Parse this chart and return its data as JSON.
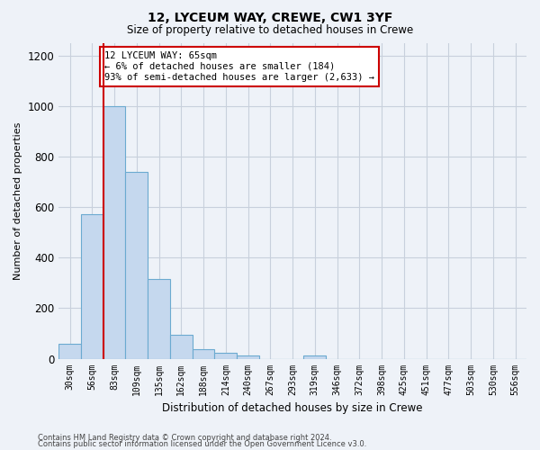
{
  "title": "12, LYCEUM WAY, CREWE, CW1 3YF",
  "subtitle": "Size of property relative to detached houses in Crewe",
  "xlabel": "Distribution of detached houses by size in Crewe",
  "ylabel": "Number of detached properties",
  "bar_color": "#c5d8ee",
  "bar_edge_color": "#6baad0",
  "bg_color": "#eef2f8",
  "grid_color": "#c8d0dc",
  "categories": [
    "30sqm",
    "56sqm",
    "83sqm",
    "109sqm",
    "135sqm",
    "162sqm",
    "188sqm",
    "214sqm",
    "240sqm",
    "267sqm",
    "293sqm",
    "319sqm",
    "346sqm",
    "372sqm",
    "398sqm",
    "425sqm",
    "451sqm",
    "477sqm",
    "503sqm",
    "530sqm",
    "556sqm"
  ],
  "values": [
    60,
    570,
    1000,
    740,
    315,
    95,
    38,
    25,
    13,
    0,
    0,
    13,
    0,
    0,
    0,
    0,
    0,
    0,
    0,
    0,
    0
  ],
  "ylim": [
    0,
    1250
  ],
  "yticks": [
    0,
    200,
    400,
    600,
    800,
    1000,
    1200
  ],
  "property_line_bin": 1,
  "annotation_text": "12 LYCEUM WAY: 65sqm\n← 6% of detached houses are smaller (184)\n93% of semi-detached houses are larger (2,633) →",
  "annotation_box_color": "#ffffff",
  "annotation_box_edge": "#cc0000",
  "property_line_color": "#cc0000",
  "footer1": "Contains HM Land Registry data © Crown copyright and database right 2024.",
  "footer2": "Contains public sector information licensed under the Open Government Licence v3.0."
}
